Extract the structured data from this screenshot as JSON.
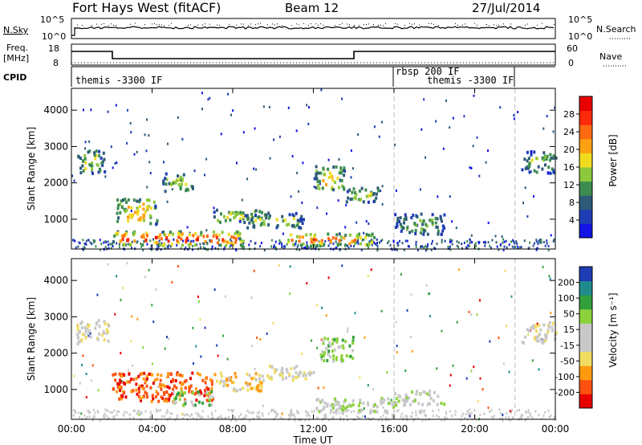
{
  "header": {
    "radar": "Fort Hays West (fitACF)",
    "beam": "Beam 12",
    "date": "27/Jul/2014"
  },
  "noise_panel": {
    "left_label": "N.Sky",
    "left_ticks": [
      "10^5",
      "10^0"
    ],
    "right_label": "N.Search",
    "right_ticks": [
      "10^5",
      "10^0"
    ]
  },
  "freq_panel": {
    "left_label_line1": "Freq.",
    "left_label_line2": "[MHz]",
    "left_ticks": [
      "18",
      "8"
    ],
    "right_label": "Nave",
    "right_ticks": [
      "60",
      "0"
    ]
  },
  "cpid_panel": {
    "label": "CPID",
    "segments": [
      {
        "text": "themis -3300 IF",
        "start_hour": 0
      },
      {
        "text": "rbsp 200 IF",
        "start_hour": 16
      },
      {
        "text": "themis -3300 IF",
        "start_hour": 16.8
      }
    ]
  },
  "chart_data": [
    {
      "type": "heatmap",
      "name": "power",
      "ylabel": "Slant Range [km]",
      "y_ticks": [
        "1000",
        "2000",
        "3000",
        "4000"
      ],
      "xlim": [
        0,
        24
      ],
      "ylim": [
        180,
        4600
      ],
      "colorbar": {
        "label": "Power [dB]",
        "ticks": [
          "4",
          "8",
          "12",
          "16",
          "20",
          "24",
          "28"
        ],
        "range": [
          0,
          30
        ],
        "colors": [
          "#1414e6",
          "#1e3cb4",
          "#2d5a78",
          "#3c8c50",
          "#8cc83c",
          "#f0dc1e",
          "#ffa014",
          "#ff6a10",
          "#ff2a0a",
          "#e80000"
        ]
      },
      "regions": [
        {
          "t0": 0.2,
          "t1": 1.6,
          "r0": 2300,
          "r1": 2950,
          "level": 0.45
        },
        {
          "t0": 2.0,
          "t1": 8.5,
          "r0": 300,
          "r1": 700,
          "level": 0.85
        },
        {
          "t0": 2.2,
          "t1": 4.2,
          "r0": 900,
          "r1": 1600,
          "level": 0.6
        },
        {
          "t0": 4.5,
          "t1": 6.0,
          "r0": 1800,
          "r1": 2300,
          "level": 0.5
        },
        {
          "t0": 7.0,
          "t1": 9.8,
          "r0": 950,
          "r1": 1300,
          "level": 0.55
        },
        {
          "t0": 8.5,
          "t1": 11.5,
          "r0": 800,
          "r1": 1200,
          "level": 0.45
        },
        {
          "t0": 10.5,
          "t1": 15.0,
          "r0": 300,
          "r1": 650,
          "level": 0.8
        },
        {
          "t0": 12.0,
          "t1": 13.5,
          "r0": 1800,
          "r1": 2500,
          "level": 0.6
        },
        {
          "t0": 13.5,
          "t1": 15.3,
          "r0": 1500,
          "r1": 1900,
          "level": 0.45
        },
        {
          "t0": 16.0,
          "t1": 18.5,
          "r0": 600,
          "r1": 1200,
          "level": 0.35
        },
        {
          "t0": 22.3,
          "t1": 24.0,
          "r0": 2300,
          "r1": 2900,
          "level": 0.4
        }
      ]
    },
    {
      "type": "heatmap",
      "name": "velocity",
      "ylabel": "Slant Range [km]",
      "y_ticks": [
        "1000",
        "2000",
        "3000",
        "4000"
      ],
      "xlim": [
        0,
        24
      ],
      "ylim": [
        180,
        4600
      ],
      "colorbar": {
        "label": "Velocity [m s⁻¹]",
        "ticks": [
          "-200",
          "-100",
          "-50",
          "-15",
          "15",
          "50",
          "100",
          "200"
        ],
        "colors": [
          "#e80000",
          "#ff5010",
          "#ff9a10",
          "#f0dc60",
          "#c8c8c8",
          "#c8c8c8",
          "#8cd23c",
          "#32a03c",
          "#1e8c8c",
          "#1e3cb4"
        ]
      },
      "regions": [
        {
          "t0": 0.2,
          "t1": 1.8,
          "r0": 2300,
          "r1": 2950,
          "cls": 4
        },
        {
          "t0": 2.0,
          "t1": 7.0,
          "r0": 700,
          "r1": 1500,
          "cls": 1
        },
        {
          "t0": 5.0,
          "t1": 7.0,
          "r0": 600,
          "r1": 1000,
          "cls": 6
        },
        {
          "t0": 7.0,
          "t1": 9.5,
          "r0": 1000,
          "r1": 1500,
          "cls": 3
        },
        {
          "t0": 9.5,
          "t1": 12.0,
          "r0": 1300,
          "r1": 1700,
          "cls": 4
        },
        {
          "t0": 12.0,
          "t1": 16.0,
          "r0": 400,
          "r1": 800,
          "cls": 5
        },
        {
          "t0": 12.3,
          "t1": 14.0,
          "r0": 1800,
          "r1": 2500,
          "cls": 6
        },
        {
          "t0": 16.0,
          "t1": 18.5,
          "r0": 600,
          "r1": 1000,
          "cls": 5
        },
        {
          "t0": 22.3,
          "t1": 24.0,
          "r0": 2300,
          "r1": 2900,
          "cls": 4
        }
      ]
    }
  ],
  "time_axis": {
    "label": "Time UT",
    "ticks": [
      "00:00",
      "04:00",
      "08:00",
      "12:00",
      "16:00",
      "20:00",
      "00:00"
    ]
  },
  "markers": {
    "dashed_hours": [
      16.0,
      22.0
    ]
  }
}
